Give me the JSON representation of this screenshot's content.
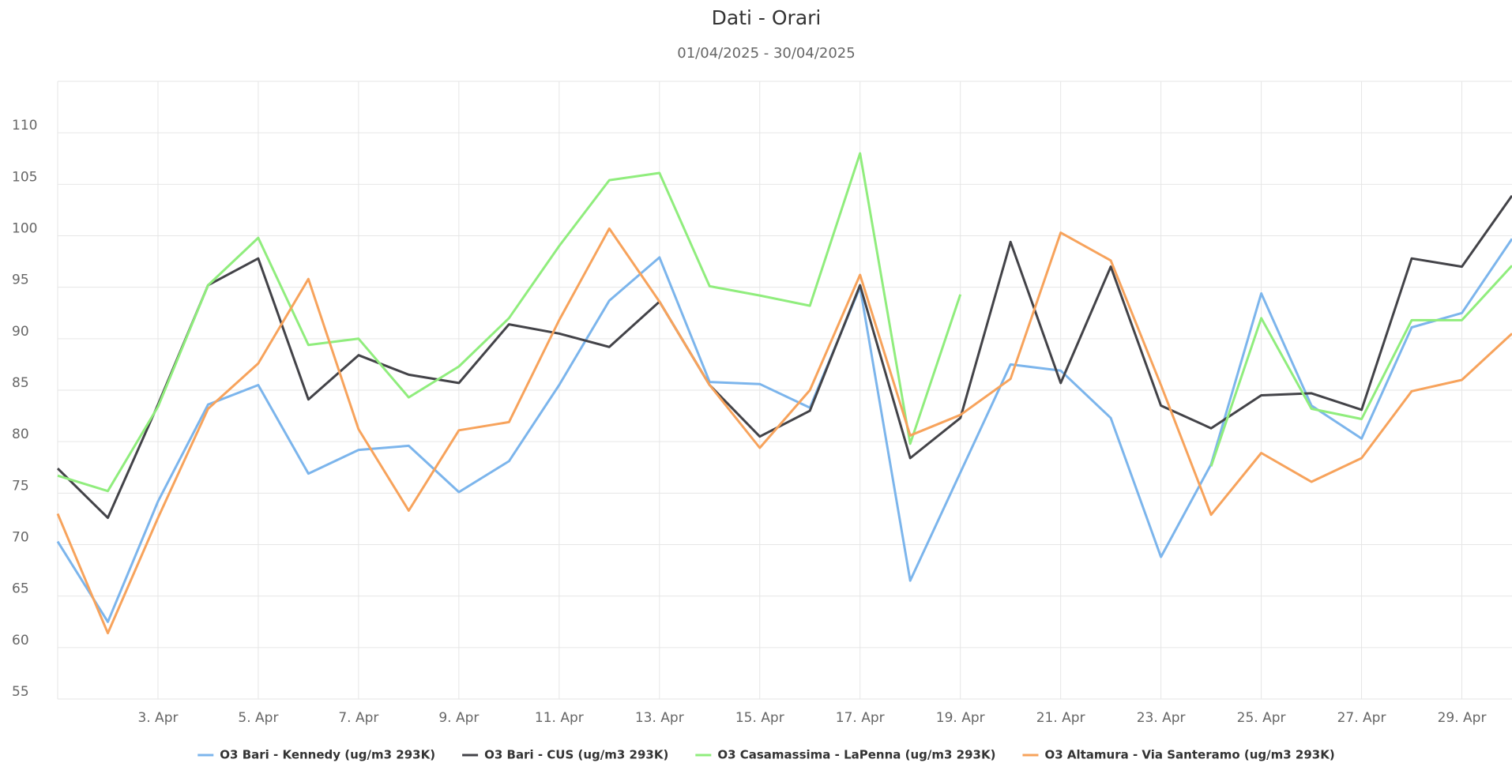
{
  "chart_data": {
    "type": "line",
    "title": "Dati - Orari",
    "subtitle": "01/04/2025 - 30/04/2025",
    "categories": [
      null,
      null,
      "3. Apr",
      null,
      "5. Apr",
      null,
      "7. Apr",
      null,
      "9. Apr",
      null,
      "11. Apr",
      null,
      "13. Apr",
      null,
      "15. Apr",
      null,
      "17. Apr",
      null,
      "19. Apr",
      null,
      "21. Apr",
      null,
      "23. Apr",
      null,
      "25. Apr",
      null,
      "27. Apr",
      null,
      "29. Apr",
      null
    ],
    "series": [
      {
        "name": "O3 Bari - Kennedy (ug/m3 293K)",
        "color": "#7cb5ec",
        "values": [
          70.3,
          62.5,
          74.2,
          83.6,
          85.5,
          76.9,
          79.2,
          79.6,
          75.1,
          78.1,
          85.5,
          93.7,
          97.9,
          85.8,
          85.6,
          83.3,
          95.0,
          66.5,
          77.0,
          87.5,
          86.9,
          82.3,
          68.8,
          77.8,
          94.4,
          83.5,
          80.3,
          91.1,
          92.5,
          99.7
        ]
      },
      {
        "name": "O3 Bari - CUS (ug/m3 293K)",
        "color": "#434348",
        "values": [
          77.4,
          72.6,
          83.6,
          95.2,
          97.8,
          84.1,
          88.4,
          86.5,
          85.7,
          91.4,
          90.5,
          89.2,
          93.6,
          85.5,
          80.5,
          83.0,
          95.2,
          78.4,
          82.3,
          99.4,
          85.7,
          97.0,
          83.5,
          81.3,
          84.5,
          84.7,
          83.1,
          97.8,
          97.0,
          103.9
        ]
      },
      {
        "name": "O3 Casamassima - LaPenna (ug/m3 293K)",
        "color": "#90ed7d",
        "values": [
          76.7,
          75.2,
          83.4,
          95.2,
          99.8,
          89.4,
          90.0,
          84.3,
          87.3,
          92.0,
          99.0,
          105.4,
          106.1,
          95.1,
          94.2,
          93.2,
          108.0,
          79.8,
          94.3,
          null,
          null,
          null,
          null,
          77.6,
          92.0,
          83.2,
          82.2,
          91.8,
          91.8,
          97.1
        ]
      },
      {
        "name": "O3 Altamura - Via Santeramo (ug/m3 293K)",
        "color": "#f7a35c",
        "values": [
          73.0,
          61.4,
          72.6,
          83.2,
          87.6,
          95.8,
          81.2,
          73.3,
          81.1,
          81.9,
          91.8,
          100.7,
          93.6,
          85.5,
          79.4,
          85.0,
          96.2,
          80.6,
          82.6,
          86.1,
          100.3,
          97.6,
          85.5,
          72.9,
          78.9,
          76.1,
          78.4,
          84.9,
          86.0,
          90.5
        ]
      }
    ],
    "ylim": [
      55,
      115
    ],
    "yticks": [
      55,
      60,
      65,
      70,
      75,
      80,
      85,
      90,
      95,
      100,
      105,
      110
    ],
    "grid": true
  }
}
